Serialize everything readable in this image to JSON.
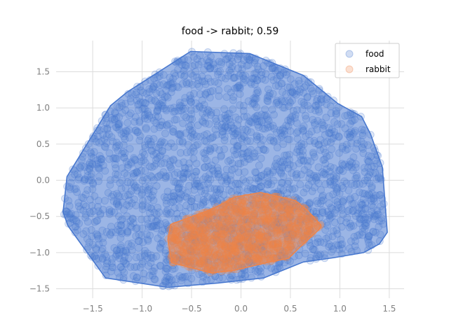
{
  "chart_data": {
    "type": "scatter",
    "title": "food -> rabbit; 0.59",
    "xlabel": "",
    "ylabel": "",
    "xlim": [
      -1.87,
      1.65
    ],
    "ylim": [
      -1.63,
      1.93
    ],
    "xticks": [
      -1.5,
      -1.0,
      -0.5,
      0.0,
      0.5,
      1.0,
      1.5
    ],
    "xtick_labels": [
      "−1.5",
      "−1.0",
      "−0.5",
      "0.0",
      "0.5",
      "1.0",
      "1.5"
    ],
    "yticks": [
      -1.5,
      -1.0,
      -0.5,
      0.0,
      0.5,
      1.0,
      1.5
    ],
    "ytick_labels": [
      "−1.5",
      "−1.0",
      "−0.5",
      "0.0",
      "0.5",
      "1.0",
      "1.5"
    ],
    "grid": true,
    "legend": {
      "placement": "top-right",
      "entries": [
        {
          "label": "food",
          "color": "#4878cf"
        },
        {
          "label": "rabbit",
          "color": "#ee854a"
        }
      ]
    },
    "series": [
      {
        "name": "food",
        "color": "#4878cf",
        "hull": [
          [
            -0.51,
            1.78
          ],
          [
            0.09,
            1.75
          ],
          [
            0.63,
            1.45
          ],
          [
            0.98,
            1.06
          ],
          [
            1.22,
            0.88
          ],
          [
            1.31,
            0.64
          ],
          [
            1.43,
            0.18
          ],
          [
            1.48,
            -0.72
          ],
          [
            1.4,
            -0.88
          ],
          [
            1.24,
            -1.0
          ],
          [
            0.94,
            -1.07
          ],
          [
            0.63,
            -1.13
          ],
          [
            0.23,
            -1.35
          ],
          [
            -0.23,
            -1.42
          ],
          [
            -0.74,
            -1.48
          ],
          [
            -1.37,
            -1.35
          ],
          [
            -1.75,
            -0.63
          ],
          [
            -1.8,
            -0.44
          ],
          [
            -1.76,
            0.05
          ],
          [
            -1.32,
            1.03
          ],
          [
            -1.15,
            1.22
          ]
        ]
      },
      {
        "name": "rabbit",
        "color": "#ee854a",
        "hull": [
          [
            -0.28,
            -0.39
          ],
          [
            -0.06,
            -0.23
          ],
          [
            0.2,
            -0.17
          ],
          [
            0.55,
            -0.28
          ],
          [
            0.66,
            -0.4
          ],
          [
            0.81,
            -0.62
          ],
          [
            0.79,
            -0.68
          ],
          [
            0.6,
            -0.92
          ],
          [
            0.48,
            -1.08
          ],
          [
            0.32,
            -1.12
          ],
          [
            -0.09,
            -1.25
          ],
          [
            -0.3,
            -1.28
          ],
          [
            -0.7,
            -1.14
          ],
          [
            -0.74,
            -0.82
          ],
          [
            -0.71,
            -0.61
          ]
        ]
      }
    ]
  }
}
